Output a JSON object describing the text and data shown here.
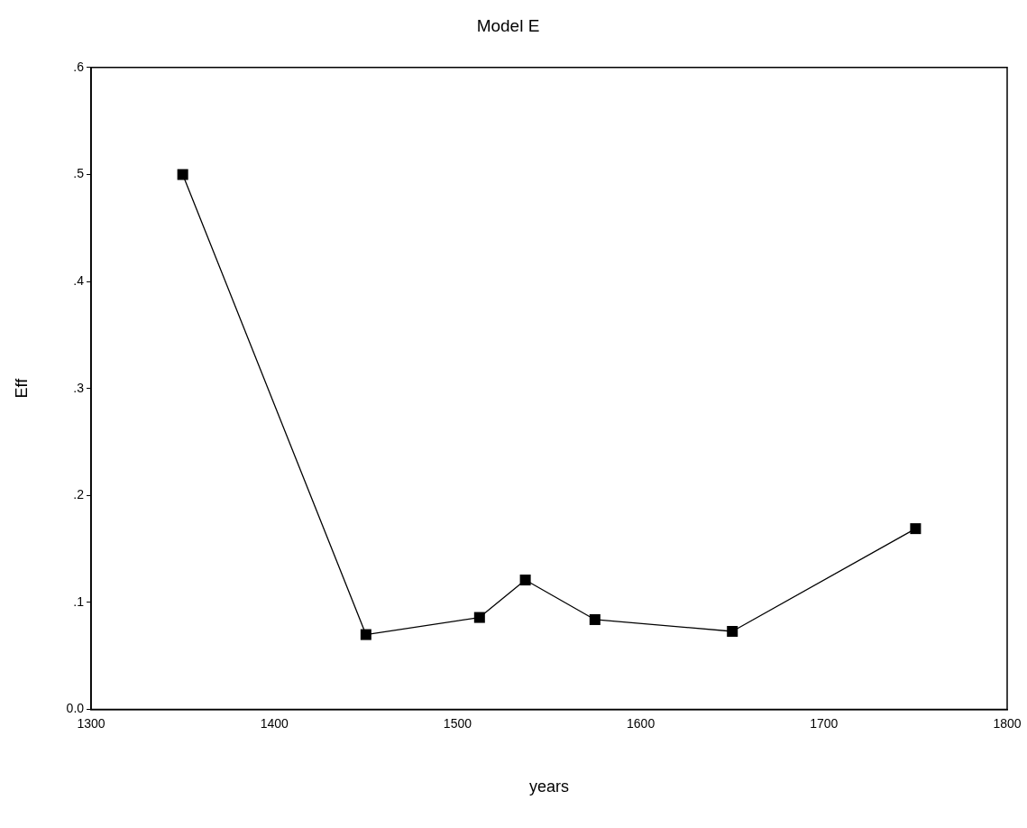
{
  "chart_data": {
    "type": "line",
    "title": "Model E",
    "xlabel": "years",
    "ylabel": "Eff",
    "x": [
      1350,
      1450,
      1512,
      1537,
      1575,
      1650,
      1750
    ],
    "values": [
      0.5,
      0.07,
      0.086,
      0.121,
      0.084,
      0.073,
      0.169
    ],
    "color": "#000000",
    "marker": "square",
    "line_style": "solid",
    "grid": false,
    "legend": false,
    "xlim": [
      1300,
      1800
    ],
    "xticks": [
      1300,
      1400,
      1500,
      1600,
      1700,
      1800
    ],
    "ylim": [
      0,
      0.6
    ],
    "yticks": [
      {
        "value": 0,
        "label": "0.0"
      },
      {
        "value": 0.1,
        "label": ".1"
      },
      {
        "value": 0.2,
        "label": ".2"
      },
      {
        "value": 0.3,
        "label": ".3"
      },
      {
        "value": 0.4,
        "label": ".4"
      },
      {
        "value": 0.5,
        "label": ".5"
      },
      {
        "value": 0.6,
        "label": ".6"
      }
    ]
  }
}
